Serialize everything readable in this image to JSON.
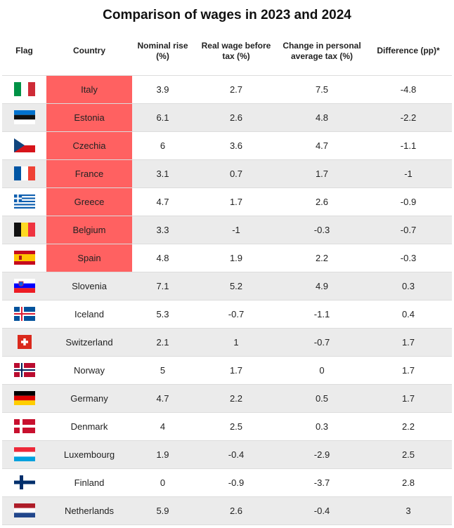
{
  "title": "Comparison of wages in 2023 and 2024",
  "columns": [
    "Flag",
    "Country",
    "Nominal rise (%)",
    "Real wage before tax (%)",
    "Change in personal average tax (%)",
    "Difference (pp)*"
  ],
  "colors": {
    "highlight": "#ff6161",
    "stripe": "#ebebeb"
  },
  "chart_data": {
    "type": "table",
    "title": "Comparison of wages in 2023 and 2024",
    "columns": [
      "Flag",
      "Country",
      "Nominal rise (%)",
      "Real wage before tax (%)",
      "Change in personal average tax (%)",
      "Difference (pp)*"
    ],
    "rows": [
      {
        "flag": "italy-flag-icon",
        "country": "Italy",
        "nominal": "3.9",
        "real": "2.7",
        "tax": "7.5",
        "diff": "-4.8",
        "highlight": true
      },
      {
        "flag": "estonia-flag-icon",
        "country": "Estonia",
        "nominal": "6.1",
        "real": "2.6",
        "tax": "4.8",
        "diff": "-2.2",
        "highlight": true
      },
      {
        "flag": "czechia-flag-icon",
        "country": "Czechia",
        "nominal": "6",
        "real": "3.6",
        "tax": "4.7",
        "diff": "-1.1",
        "highlight": true
      },
      {
        "flag": "france-flag-icon",
        "country": "France",
        "nominal": "3.1",
        "real": "0.7",
        "tax": "1.7",
        "diff": "-1",
        "highlight": true
      },
      {
        "flag": "greece-flag-icon",
        "country": "Greece",
        "nominal": "4.7",
        "real": "1.7",
        "tax": "2.6",
        "diff": "-0.9",
        "highlight": true
      },
      {
        "flag": "belgium-flag-icon",
        "country": "Belgium",
        "nominal": "3.3",
        "real": "-1",
        "tax": "-0.3",
        "diff": "-0.7",
        "highlight": true
      },
      {
        "flag": "spain-flag-icon",
        "country": "Spain",
        "nominal": "4.8",
        "real": "1.9",
        "tax": "2.2",
        "diff": "-0.3",
        "highlight": true
      },
      {
        "flag": "slovenia-flag-icon",
        "country": "Slovenia",
        "nominal": "7.1",
        "real": "5.2",
        "tax": "4.9",
        "diff": "0.3",
        "highlight": false
      },
      {
        "flag": "iceland-flag-icon",
        "country": "Iceland",
        "nominal": "5.3",
        "real": "-0.7",
        "tax": "-1.1",
        "diff": "0.4",
        "highlight": false
      },
      {
        "flag": "switzerland-flag-icon",
        "country": "Switzerland",
        "nominal": "2.1",
        "real": "1",
        "tax": "-0.7",
        "diff": "1.7",
        "highlight": false
      },
      {
        "flag": "norway-flag-icon",
        "country": "Norway",
        "nominal": "5",
        "real": "1.7",
        "tax": "0",
        "diff": "1.7",
        "highlight": false
      },
      {
        "flag": "germany-flag-icon",
        "country": "Germany",
        "nominal": "4.7",
        "real": "2.2",
        "tax": "0.5",
        "diff": "1.7",
        "highlight": false
      },
      {
        "flag": "denmark-flag-icon",
        "country": "Denmark",
        "nominal": "4",
        "real": "2.5",
        "tax": "0.3",
        "diff": "2.2",
        "highlight": false
      },
      {
        "flag": "luxembourg-flag-icon",
        "country": "Luxembourg",
        "nominal": "1.9",
        "real": "-0.4",
        "tax": "-2.9",
        "diff": "2.5",
        "highlight": false
      },
      {
        "flag": "finland-flag-icon",
        "country": "Finland",
        "nominal": "0",
        "real": "-0.9",
        "tax": "-3.7",
        "diff": "2.8",
        "highlight": false
      },
      {
        "flag": "netherlands-flag-icon",
        "country": "Netherlands",
        "nominal": "5.9",
        "real": "2.6",
        "tax": "-0.4",
        "diff": "3",
        "highlight": false
      }
    ]
  }
}
